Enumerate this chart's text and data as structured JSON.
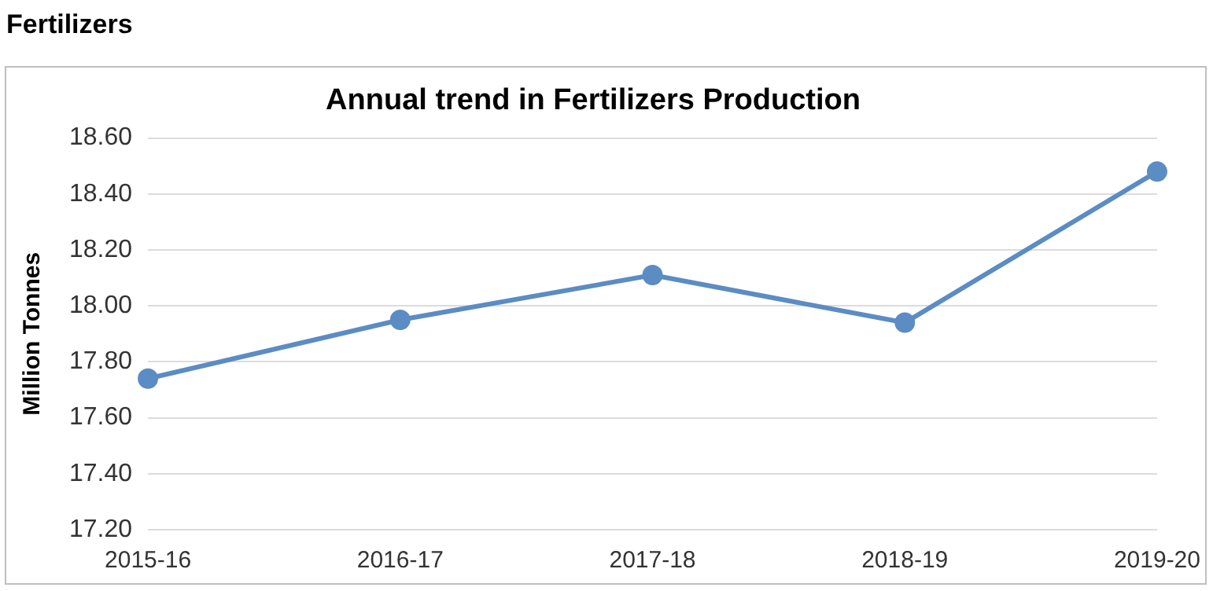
{
  "chart_data": {
    "type": "line",
    "title": "Annual trend in Fertilizers Production",
    "ylabel": "Million Tonnes",
    "annotations": [
      "Fertilizers"
    ],
    "categories": [
      "2015-16",
      "2016-17",
      "2017-18",
      "2018-19",
      "2019-20"
    ],
    "series": [
      {
        "color": "#5b8cc4",
        "values": [
          17.74,
          17.95,
          18.11,
          17.94,
          18.48
        ]
      }
    ],
    "ylim": [
      17.2,
      18.6
    ],
    "yticks": [
      {
        "value": 17.2,
        "label": "17.20"
      },
      {
        "value": 17.4,
        "label": "17.40"
      },
      {
        "value": 17.6,
        "label": "17.60"
      },
      {
        "value": 17.8,
        "label": "17.80"
      },
      {
        "value": 18.0,
        "label": "18.00"
      },
      {
        "value": 18.2,
        "label": "18.20"
      },
      {
        "value": 18.4,
        "label": "18.40"
      },
      {
        "value": 18.6,
        "label": "18.60"
      }
    ],
    "grid": "y",
    "legend": false,
    "marker": "circle",
    "line_style": "solid"
  }
}
